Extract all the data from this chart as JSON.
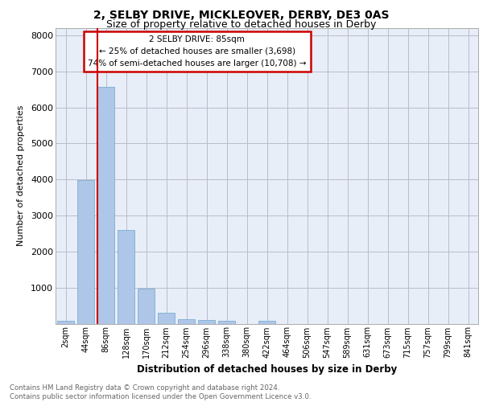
{
  "title1": "2, SELBY DRIVE, MICKLEOVER, DERBY, DE3 0AS",
  "title2": "Size of property relative to detached houses in Derby",
  "xlabel": "Distribution of detached houses by size in Derby",
  "ylabel": "Number of detached properties",
  "categories": [
    "2sqm",
    "44sqm",
    "86sqm",
    "128sqm",
    "170sqm",
    "212sqm",
    "254sqm",
    "296sqm",
    "338sqm",
    "380sqm",
    "422sqm",
    "464sqm",
    "506sqm",
    "547sqm",
    "589sqm",
    "631sqm",
    "673sqm",
    "715sqm",
    "757sqm",
    "799sqm",
    "841sqm"
  ],
  "values": [
    70,
    3980,
    6580,
    2600,
    960,
    310,
    130,
    110,
    80,
    0,
    80,
    0,
    0,
    0,
    0,
    0,
    0,
    0,
    0,
    0,
    0
  ],
  "bar_color": "#aec6e8",
  "bar_edge_color": "#7aaed0",
  "grid_color": "#cccccc",
  "background_color": "#e8eef8",
  "annotation_box_color": "#cc0000",
  "property_line_color": "#cc0000",
  "annotation_text_line1": "2 SELBY DRIVE: 85sqm",
  "annotation_text_line2": "← 25% of detached houses are smaller (3,698)",
  "annotation_text_line3": "74% of semi-detached houses are larger (10,708) →",
  "ylim": [
    0,
    8200
  ],
  "yticks": [
    0,
    1000,
    2000,
    3000,
    4000,
    5000,
    6000,
    7000,
    8000
  ],
  "footer_line1": "Contains HM Land Registry data © Crown copyright and database right 2024.",
  "footer_line2": "Contains public sector information licensed under the Open Government Licence v3.0."
}
